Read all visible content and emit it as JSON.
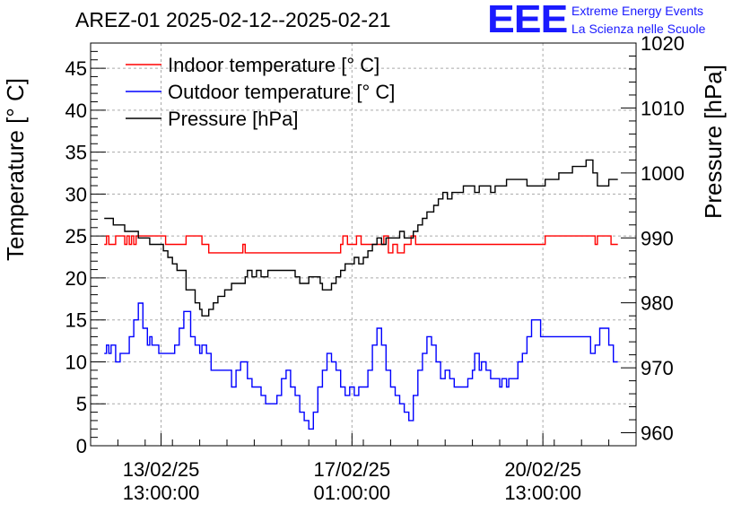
{
  "chart_data": {
    "type": "line",
    "title": "AREZ-01 2025-02-12--2025-02-21",
    "ylabel": "Temperature [° C]",
    "y2label": "Pressure [hPa]",
    "ylim": [
      0,
      48
    ],
    "y2lim": [
      958,
      1020
    ],
    "xlim": [
      "2025-02-12 06:00",
      "2025-02-22 06:00"
    ],
    "yticks": [
      "0",
      "5",
      "10",
      "15",
      "20",
      "25",
      "30",
      "35",
      "40",
      "45"
    ],
    "y2ticks": [
      "960",
      "970",
      "980",
      "990",
      "1000",
      "1010",
      "1020"
    ],
    "xticks": [
      {
        "x": "2025-02-13 13:00",
        "date": "13/02/25",
        "time": "13:00:00"
      },
      {
        "x": "2025-02-17 01:00",
        "date": "17/02/25",
        "time": "01:00:00"
      },
      {
        "x": "2025-02-20 13:00",
        "date": "20/02/25",
        "time": "13:00:00"
      }
    ],
    "grid": true,
    "legend": "top-left",
    "series": [
      {
        "name": "Indoor temperature [° C]",
        "color": "#ff0000",
        "axis": "left",
        "points": [
          [
            "2025-02-12 12:00",
            24
          ],
          [
            "2025-02-12 13:00",
            25
          ],
          [
            "2025-02-12 14:00",
            24
          ],
          [
            "2025-02-12 16:00",
            24
          ],
          [
            "2025-02-12 17:00",
            25
          ],
          [
            "2025-02-12 20:00",
            25
          ],
          [
            "2025-02-12 21:00",
            24
          ],
          [
            "2025-02-12 22:00",
            25
          ],
          [
            "2025-02-12 23:00",
            24
          ],
          [
            "2025-02-13 00:00",
            25
          ],
          [
            "2025-02-13 01:00",
            24
          ],
          [
            "2025-02-13 02:00",
            25
          ],
          [
            "2025-02-13 14:00",
            25
          ],
          [
            "2025-02-13 15:00",
            24
          ],
          [
            "2025-02-14 00:00",
            25
          ],
          [
            "2025-02-14 06:00",
            25
          ],
          [
            "2025-02-14 07:00",
            24
          ],
          [
            "2025-02-14 09:00",
            24
          ],
          [
            "2025-02-14 10:00",
            23
          ],
          [
            "2025-02-15 00:00",
            23
          ],
          [
            "2025-02-15 01:00",
            24
          ],
          [
            "2025-02-15 02:00",
            23
          ],
          [
            "2025-02-16 19:00",
            23
          ],
          [
            "2025-02-16 20:00",
            24
          ],
          [
            "2025-02-16 21:00",
            25
          ],
          [
            "2025-02-16 23:00",
            24
          ],
          [
            "2025-02-17 01:00",
            24
          ],
          [
            "2025-02-17 03:00",
            25
          ],
          [
            "2025-02-17 05:00",
            24
          ],
          [
            "2025-02-17 14:00",
            24
          ],
          [
            "2025-02-17 15:00",
            25
          ],
          [
            "2025-02-17 17:00",
            23
          ],
          [
            "2025-02-17 19:00",
            24
          ],
          [
            "2025-02-17 21:00",
            23
          ],
          [
            "2025-02-18 00:00",
            24
          ],
          [
            "2025-02-18 03:00",
            25
          ],
          [
            "2025-02-18 05:00",
            24
          ],
          [
            "2025-02-20 13:00",
            24
          ],
          [
            "2025-02-20 14:00",
            25
          ],
          [
            "2025-02-21 12:00",
            24
          ],
          [
            "2025-02-21 13:00",
            25
          ],
          [
            "2025-02-21 18:00",
            25
          ],
          [
            "2025-02-21 19:00",
            24
          ],
          [
            "2025-02-21 22:00",
            24
          ]
        ]
      },
      {
        "name": "Outdoor temperature [° C]",
        "color": "#0000ff",
        "axis": "left",
        "points": [
          [
            "2025-02-12 12:00",
            11
          ],
          [
            "2025-02-12 13:00",
            12
          ],
          [
            "2025-02-12 14:00",
            11
          ],
          [
            "2025-02-12 15:00",
            12
          ],
          [
            "2025-02-12 17:00",
            10
          ],
          [
            "2025-02-12 19:00",
            11
          ],
          [
            "2025-02-12 21:00",
            11
          ],
          [
            "2025-02-12 23:00",
            13
          ],
          [
            "2025-02-13 01:00",
            15
          ],
          [
            "2025-02-13 03:00",
            17
          ],
          [
            "2025-02-13 05:00",
            14
          ],
          [
            "2025-02-13 07:00",
            12
          ],
          [
            "2025-02-13 08:00",
            13
          ],
          [
            "2025-02-13 09:00",
            12
          ],
          [
            "2025-02-13 10:00",
            12
          ],
          [
            "2025-02-13 12:00",
            11
          ],
          [
            "2025-02-13 17:00",
            11
          ],
          [
            "2025-02-13 19:00",
            12
          ],
          [
            "2025-02-13 21:00",
            14
          ],
          [
            "2025-02-13 23:00",
            16
          ],
          [
            "2025-02-14 00:00",
            16
          ],
          [
            "2025-02-14 02:00",
            13
          ],
          [
            "2025-02-14 04:00",
            12
          ],
          [
            "2025-02-14 06:00",
            11
          ],
          [
            "2025-02-14 07:00",
            12
          ],
          [
            "2025-02-14 09:00",
            11
          ],
          [
            "2025-02-14 11:00",
            9
          ],
          [
            "2025-02-14 20:00",
            7
          ],
          [
            "2025-02-14 22:00",
            9
          ],
          [
            "2025-02-15 00:00",
            10
          ],
          [
            "2025-02-15 01:00",
            10
          ],
          [
            "2025-02-15 03:00",
            8
          ],
          [
            "2025-02-15 05:00",
            7
          ],
          [
            "2025-02-15 07:00",
            7
          ],
          [
            "2025-02-15 09:00",
            6
          ],
          [
            "2025-02-15 11:00",
            5
          ],
          [
            "2025-02-15 14:00",
            5
          ],
          [
            "2025-02-15 16:00",
            6
          ],
          [
            "2025-02-15 18:00",
            8
          ],
          [
            "2025-02-15 20:00",
            9
          ],
          [
            "2025-02-15 22:00",
            7
          ],
          [
            "2025-02-16 00:00",
            6
          ],
          [
            "2025-02-16 02:00",
            4
          ],
          [
            "2025-02-16 04:00",
            3
          ],
          [
            "2025-02-16 06:00",
            2
          ],
          [
            "2025-02-16 08:00",
            4
          ],
          [
            "2025-02-16 10:00",
            7
          ],
          [
            "2025-02-16 12:00",
            9
          ],
          [
            "2025-02-16 14:00",
            11
          ],
          [
            "2025-02-16 16:00",
            10
          ],
          [
            "2025-02-16 18:00",
            9
          ],
          [
            "2025-02-16 20:00",
            7
          ],
          [
            "2025-02-16 22:00",
            6
          ],
          [
            "2025-02-17 00:00",
            7
          ],
          [
            "2025-02-17 02:00",
            6
          ],
          [
            "2025-02-17 04:00",
            7
          ],
          [
            "2025-02-17 06:00",
            7
          ],
          [
            "2025-02-17 08:00",
            9
          ],
          [
            "2025-02-17 10:00",
            12
          ],
          [
            "2025-02-17 12:00",
            14
          ],
          [
            "2025-02-17 14:00",
            12
          ],
          [
            "2025-02-17 16:00",
            9
          ],
          [
            "2025-02-17 18:00",
            7
          ],
          [
            "2025-02-17 20:00",
            6
          ],
          [
            "2025-02-17 22:00",
            5
          ],
          [
            "2025-02-18 00:00",
            4
          ],
          [
            "2025-02-18 02:00",
            3
          ],
          [
            "2025-02-18 04:00",
            6
          ],
          [
            "2025-02-18 06:00",
            9
          ],
          [
            "2025-02-18 08:00",
            11
          ],
          [
            "2025-02-18 10:00",
            13
          ],
          [
            "2025-02-18 12:00",
            12
          ],
          [
            "2025-02-18 14:00",
            10
          ],
          [
            "2025-02-18 16:00",
            8
          ],
          [
            "2025-02-18 18:00",
            9
          ],
          [
            "2025-02-18 20:00",
            8
          ],
          [
            "2025-02-18 22:00",
            7
          ],
          [
            "2025-02-19 02:00",
            7
          ],
          [
            "2025-02-19 04:00",
            8
          ],
          [
            "2025-02-19 06:00",
            9
          ],
          [
            "2025-02-19 07:00",
            11
          ],
          [
            "2025-02-19 09:00",
            9
          ],
          [
            "2025-02-19 10:00",
            10
          ],
          [
            "2025-02-19 12:00",
            9
          ],
          [
            "2025-02-19 14:00",
            8
          ],
          [
            "2025-02-19 16:00",
            8
          ],
          [
            "2025-02-19 18:00",
            7
          ],
          [
            "2025-02-19 19:00",
            8
          ],
          [
            "2025-02-19 21:00",
            7
          ],
          [
            "2025-02-19 22:00",
            8
          ],
          [
            "2025-02-20 00:00",
            8
          ],
          [
            "2025-02-20 02:00",
            10
          ],
          [
            "2025-02-20 04:00",
            11
          ],
          [
            "2025-02-20 06:00",
            13
          ],
          [
            "2025-02-20 08:00",
            15
          ],
          [
            "2025-02-20 10:00",
            15
          ],
          [
            "2025-02-20 12:00",
            13
          ],
          [
            "2025-02-21 10:00",
            11
          ],
          [
            "2025-02-21 12:00",
            12
          ],
          [
            "2025-02-21 14:00",
            14
          ],
          [
            "2025-02-21 16:00",
            14
          ],
          [
            "2025-02-21 18:00",
            12
          ],
          [
            "2025-02-21 20:00",
            10
          ],
          [
            "2025-02-21 22:00",
            10
          ]
        ]
      },
      {
        "name": "Pressure [hPa]",
        "color": "#000000",
        "axis": "right",
        "points": [
          [
            "2025-02-12 12:00",
            993
          ],
          [
            "2025-02-12 14:00",
            993
          ],
          [
            "2025-02-12 16:00",
            992
          ],
          [
            "2025-02-12 19:00",
            992
          ],
          [
            "2025-02-12 21:00",
            991
          ],
          [
            "2025-02-13 00:00",
            991
          ],
          [
            "2025-02-13 03:00",
            990
          ],
          [
            "2025-02-13 06:00",
            990
          ],
          [
            "2025-02-13 08:00",
            989
          ],
          [
            "2025-02-13 12:00",
            989
          ],
          [
            "2025-02-13 14:00",
            988
          ],
          [
            "2025-02-13 16:00",
            987
          ],
          [
            "2025-02-13 18:00",
            986
          ],
          [
            "2025-02-13 20:00",
            985
          ],
          [
            "2025-02-14 00:00",
            982
          ],
          [
            "2025-02-14 04:00",
            980
          ],
          [
            "2025-02-14 06:00",
            979
          ],
          [
            "2025-02-14 07:00",
            978
          ],
          [
            "2025-02-14 08:00",
            978
          ],
          [
            "2025-02-14 10:00",
            979
          ],
          [
            "2025-02-14 12:00",
            980
          ],
          [
            "2025-02-14 14:00",
            981
          ],
          [
            "2025-02-14 17:00",
            982
          ],
          [
            "2025-02-14 20:00",
            983
          ],
          [
            "2025-02-15 00:00",
            983
          ],
          [
            "2025-02-15 02:00",
            984
          ],
          [
            "2025-02-15 03:00",
            985
          ],
          [
            "2025-02-15 05:00",
            984
          ],
          [
            "2025-02-15 07:00",
            985
          ],
          [
            "2025-02-15 09:00",
            984
          ],
          [
            "2025-02-15 12:00",
            985
          ],
          [
            "2025-02-15 15:00",
            985
          ],
          [
            "2025-02-15 18:00",
            985
          ],
          [
            "2025-02-16 00:00",
            984
          ],
          [
            "2025-02-16 02:00",
            983
          ],
          [
            "2025-02-16 04:00",
            983
          ],
          [
            "2025-02-16 06:00",
            984
          ],
          [
            "2025-02-16 09:00",
            984
          ],
          [
            "2025-02-16 11:00",
            983
          ],
          [
            "2025-02-16 12:00",
            982
          ],
          [
            "2025-02-16 14:00",
            982
          ],
          [
            "2025-02-16 16:00",
            983
          ],
          [
            "2025-02-16 18:00",
            984
          ],
          [
            "2025-02-16 20:00",
            985
          ],
          [
            "2025-02-16 22:00",
            986
          ],
          [
            "2025-02-17 00:00",
            986
          ],
          [
            "2025-02-17 02:00",
            987
          ],
          [
            "2025-02-17 04:00",
            986
          ],
          [
            "2025-02-17 06:00",
            987
          ],
          [
            "2025-02-17 08:00",
            988
          ],
          [
            "2025-02-17 10:00",
            989
          ],
          [
            "2025-02-17 12:00",
            990
          ],
          [
            "2025-02-17 14:00",
            989
          ],
          [
            "2025-02-17 16:00",
            990
          ],
          [
            "2025-02-17 18:00",
            990
          ],
          [
            "2025-02-17 20:00",
            990
          ],
          [
            "2025-02-17 22:00",
            991
          ],
          [
            "2025-02-18 00:00",
            990
          ],
          [
            "2025-02-18 02:00",
            990
          ],
          [
            "2025-02-18 04:00",
            991
          ],
          [
            "2025-02-18 06:00",
            992
          ],
          [
            "2025-02-18 08:00",
            993
          ],
          [
            "2025-02-18 10:00",
            994
          ],
          [
            "2025-02-18 13:00",
            995
          ],
          [
            "2025-02-18 15:00",
            996
          ],
          [
            "2025-02-18 17:00",
            997
          ],
          [
            "2025-02-18 19:00",
            996
          ],
          [
            "2025-02-18 21:00",
            997
          ],
          [
            "2025-02-19 00:00",
            997
          ],
          [
            "2025-02-19 02:00",
            998
          ],
          [
            "2025-02-19 05:00",
            998
          ],
          [
            "2025-02-19 07:00",
            997
          ],
          [
            "2025-02-19 09:00",
            998
          ],
          [
            "2025-02-19 13:00",
            998
          ],
          [
            "2025-02-19 14:00",
            997
          ],
          [
            "2025-02-19 16:00",
            998
          ],
          [
            "2025-02-19 19:00",
            998
          ],
          [
            "2025-02-19 21:00",
            999
          ],
          [
            "2025-02-20 03:00",
            999
          ],
          [
            "2025-02-20 06:00",
            998
          ],
          [
            "2025-02-20 10:00",
            998
          ],
          [
            "2025-02-20 14:00",
            999
          ],
          [
            "2025-02-20 20:00",
            1000
          ],
          [
            "2025-02-21 02:00",
            1001
          ],
          [
            "2025-02-21 08:00",
            1002
          ],
          [
            "2025-02-21 11:00",
            1000
          ],
          [
            "2025-02-21 13:00",
            998
          ],
          [
            "2025-02-21 16:00",
            998
          ],
          [
            "2025-02-21 18:00",
            999
          ],
          [
            "2025-02-21 22:00",
            999
          ]
        ]
      }
    ]
  },
  "logo": {
    "mark": "EEE",
    "line1": "Extreme Energy Events",
    "line2": "La Scienza nelle Scuole"
  }
}
